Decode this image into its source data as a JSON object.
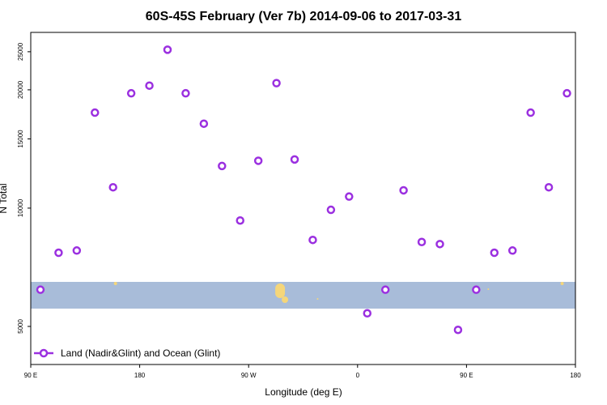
{
  "chart_data": {
    "type": "scatter",
    "title": "60S-45S February (Ver 7b)   2014-09-06 to 2017-03-31",
    "xlabel": "Longitude (deg E)",
    "ylabel": "N Total",
    "x_axis_scale": "longitude, 90 E to 180 then west to 90 W, 0, 90 E, 180",
    "x_ticks": [
      {
        "lon_unwrapped": 90,
        "label": "90 E"
      },
      {
        "lon_unwrapped": 180,
        "label": "180"
      },
      {
        "lon_unwrapped": 270,
        "label": "90 W"
      },
      {
        "lon_unwrapped": 360,
        "label": "0"
      },
      {
        "lon_unwrapped": 450,
        "label": "90 E"
      },
      {
        "lon_unwrapped": 540,
        "label": "180"
      }
    ],
    "y_ticks": [
      5000,
      10000,
      15000,
      20000,
      25000
    ],
    "ylim_log": [
      4000,
      28000
    ],
    "y_scale": "log",
    "xlim": [
      90,
      540
    ],
    "legend": {
      "label": "Land (Nadir&Glint) and Ocean (Glint)",
      "position": "bottom-left"
    },
    "series": [
      {
        "name": "Land (Nadir&Glint) and Ocean (Glint)",
        "color": "#9b30e0",
        "lon": [
          98,
          113,
          128,
          143,
          158,
          173,
          188,
          203,
          218,
          233,
          248,
          263,
          278,
          293,
          308,
          323,
          338,
          353,
          368,
          383,
          398,
          413,
          428,
          443,
          458,
          473,
          488,
          503,
          518,
          533
        ],
        "values": [
          6200,
          7700,
          7800,
          17500,
          11300,
          19600,
          20500,
          25300,
          19600,
          16400,
          12800,
          9300,
          13200,
          20800,
          13300,
          8300,
          9900,
          10700,
          5400,
          6200,
          11100,
          8200,
          8100,
          4900,
          6200,
          7700,
          7800,
          17500,
          11300,
          19600
        ]
      }
    ],
    "colors": {
      "marker": "#9b30e0",
      "band": "#a8bcd9",
      "land": "#f5d67a"
    }
  }
}
